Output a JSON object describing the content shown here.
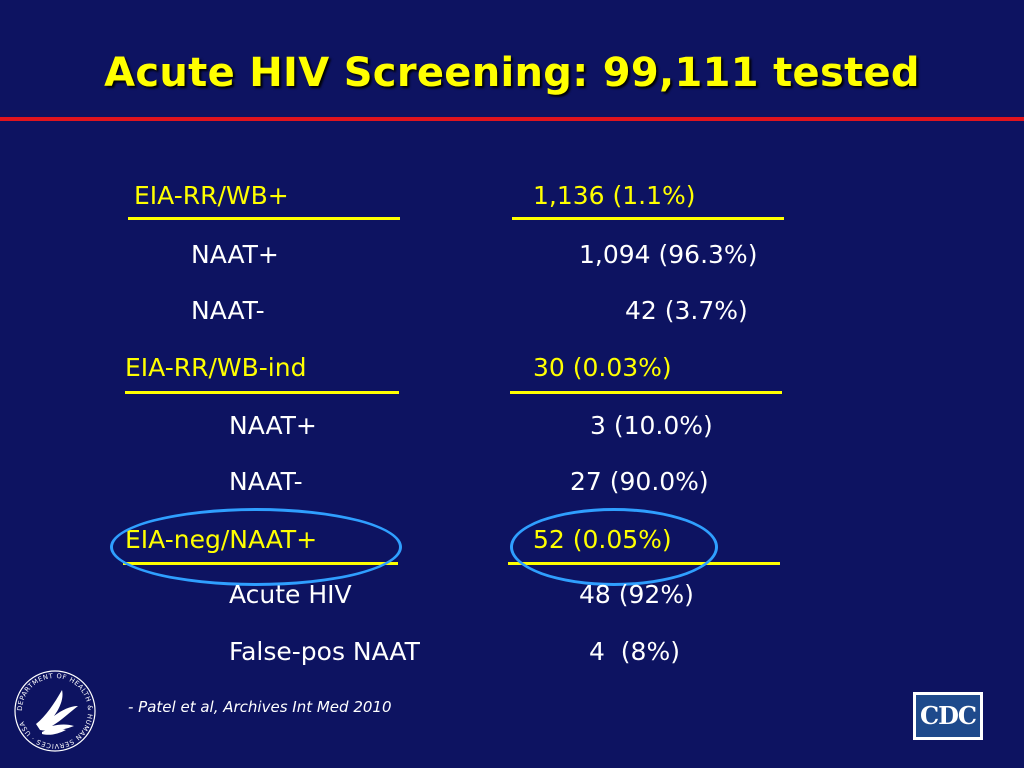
{
  "slide": {
    "title": "Acute HIV Screening: 99,111 tested",
    "rows": [
      {
        "label": "EIA-RR/WB+",
        "value": "1,136 (1.1%)"
      },
      {
        "label": "NAAT+",
        "value": "1,094 (96.3%)"
      },
      {
        "label": "NAAT-",
        "value": "42 (3.7%)"
      },
      {
        "label": "EIA-RR/WB-ind",
        "value": "30 (0.03%)"
      },
      {
        "label": "NAAT+",
        "value": "3 (10.0%)"
      },
      {
        "label": "NAAT-",
        "value": "27 (90.0%)"
      },
      {
        "label": "EIA-neg/NAAT+",
        "value": "52 (0.05%)"
      },
      {
        "label": "Acute HIV",
        "value": "48 (92%)"
      },
      {
        "label": "False-pos NAAT",
        "value": "4  (8%)"
      }
    ],
    "citation": "- Patel et al, Archives Int Med 2010",
    "logos": {
      "left": {
        "icon": "hhs-seal-icon",
        "seal_text": "DEPARTMENT OF HEALTH & HUMAN SERVICES · USA"
      },
      "right": {
        "icon": "cdc-logo-icon",
        "text": "CDC"
      }
    },
    "colors": {
      "background": "#0d1361",
      "highlight": "#ffff00",
      "text": "#ffffff",
      "rule": "#e0141e",
      "circle": "#2f9fff"
    }
  }
}
